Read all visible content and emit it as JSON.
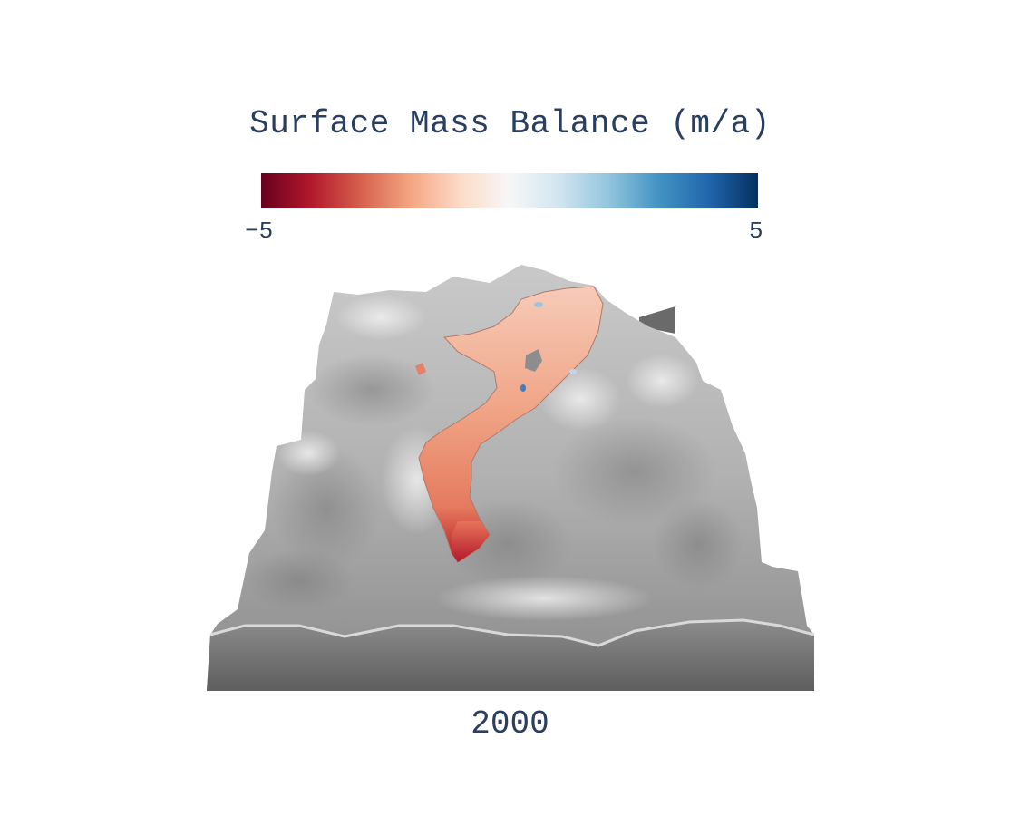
{
  "title": "Surface Mass Balance (m/a)",
  "colorbar": {
    "min_label": "−5",
    "max_label": "5",
    "min": -5,
    "max": 5,
    "colorscale": [
      "#67001f",
      "#b2182b",
      "#d6604d",
      "#f4a582",
      "#fddbc7",
      "#f7f7f7",
      "#d1e5f0",
      "#92c5de",
      "#4393c3",
      "#2166ac",
      "#053061"
    ]
  },
  "frame_label": "2000",
  "colors": {
    "terrain_light": "#d6d6d6",
    "terrain_mid": "#a9a9a9",
    "terrain_dark": "#6b6b6b",
    "glacier_main": "#ef9c80",
    "glacier_tongue": "#c0272d",
    "text": "#2a3f5f"
  }
}
